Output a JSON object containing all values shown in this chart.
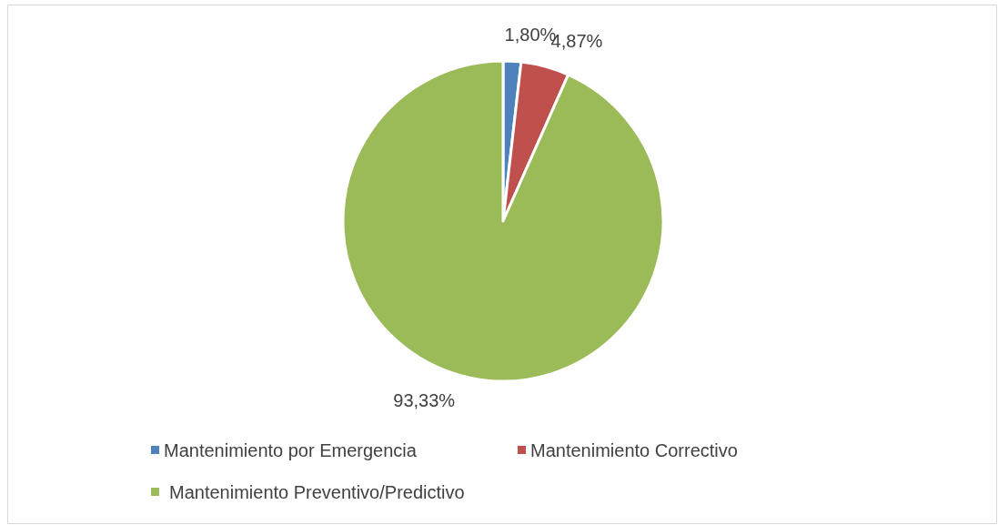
{
  "chart_data": {
    "type": "pie",
    "categories": [
      "Mantenimiento por Emergencia",
      "Mantenimiento Correctivo",
      "Mantenimiento Preventivo/Predictivo"
    ],
    "values": [
      1.8,
      4.87,
      93.33
    ],
    "colors": [
      "#4f81bd",
      "#c0504d",
      "#9bbb59"
    ],
    "value_labels": [
      "1,80%",
      "4,87%",
      "93,33%"
    ],
    "legend": "bottom"
  }
}
